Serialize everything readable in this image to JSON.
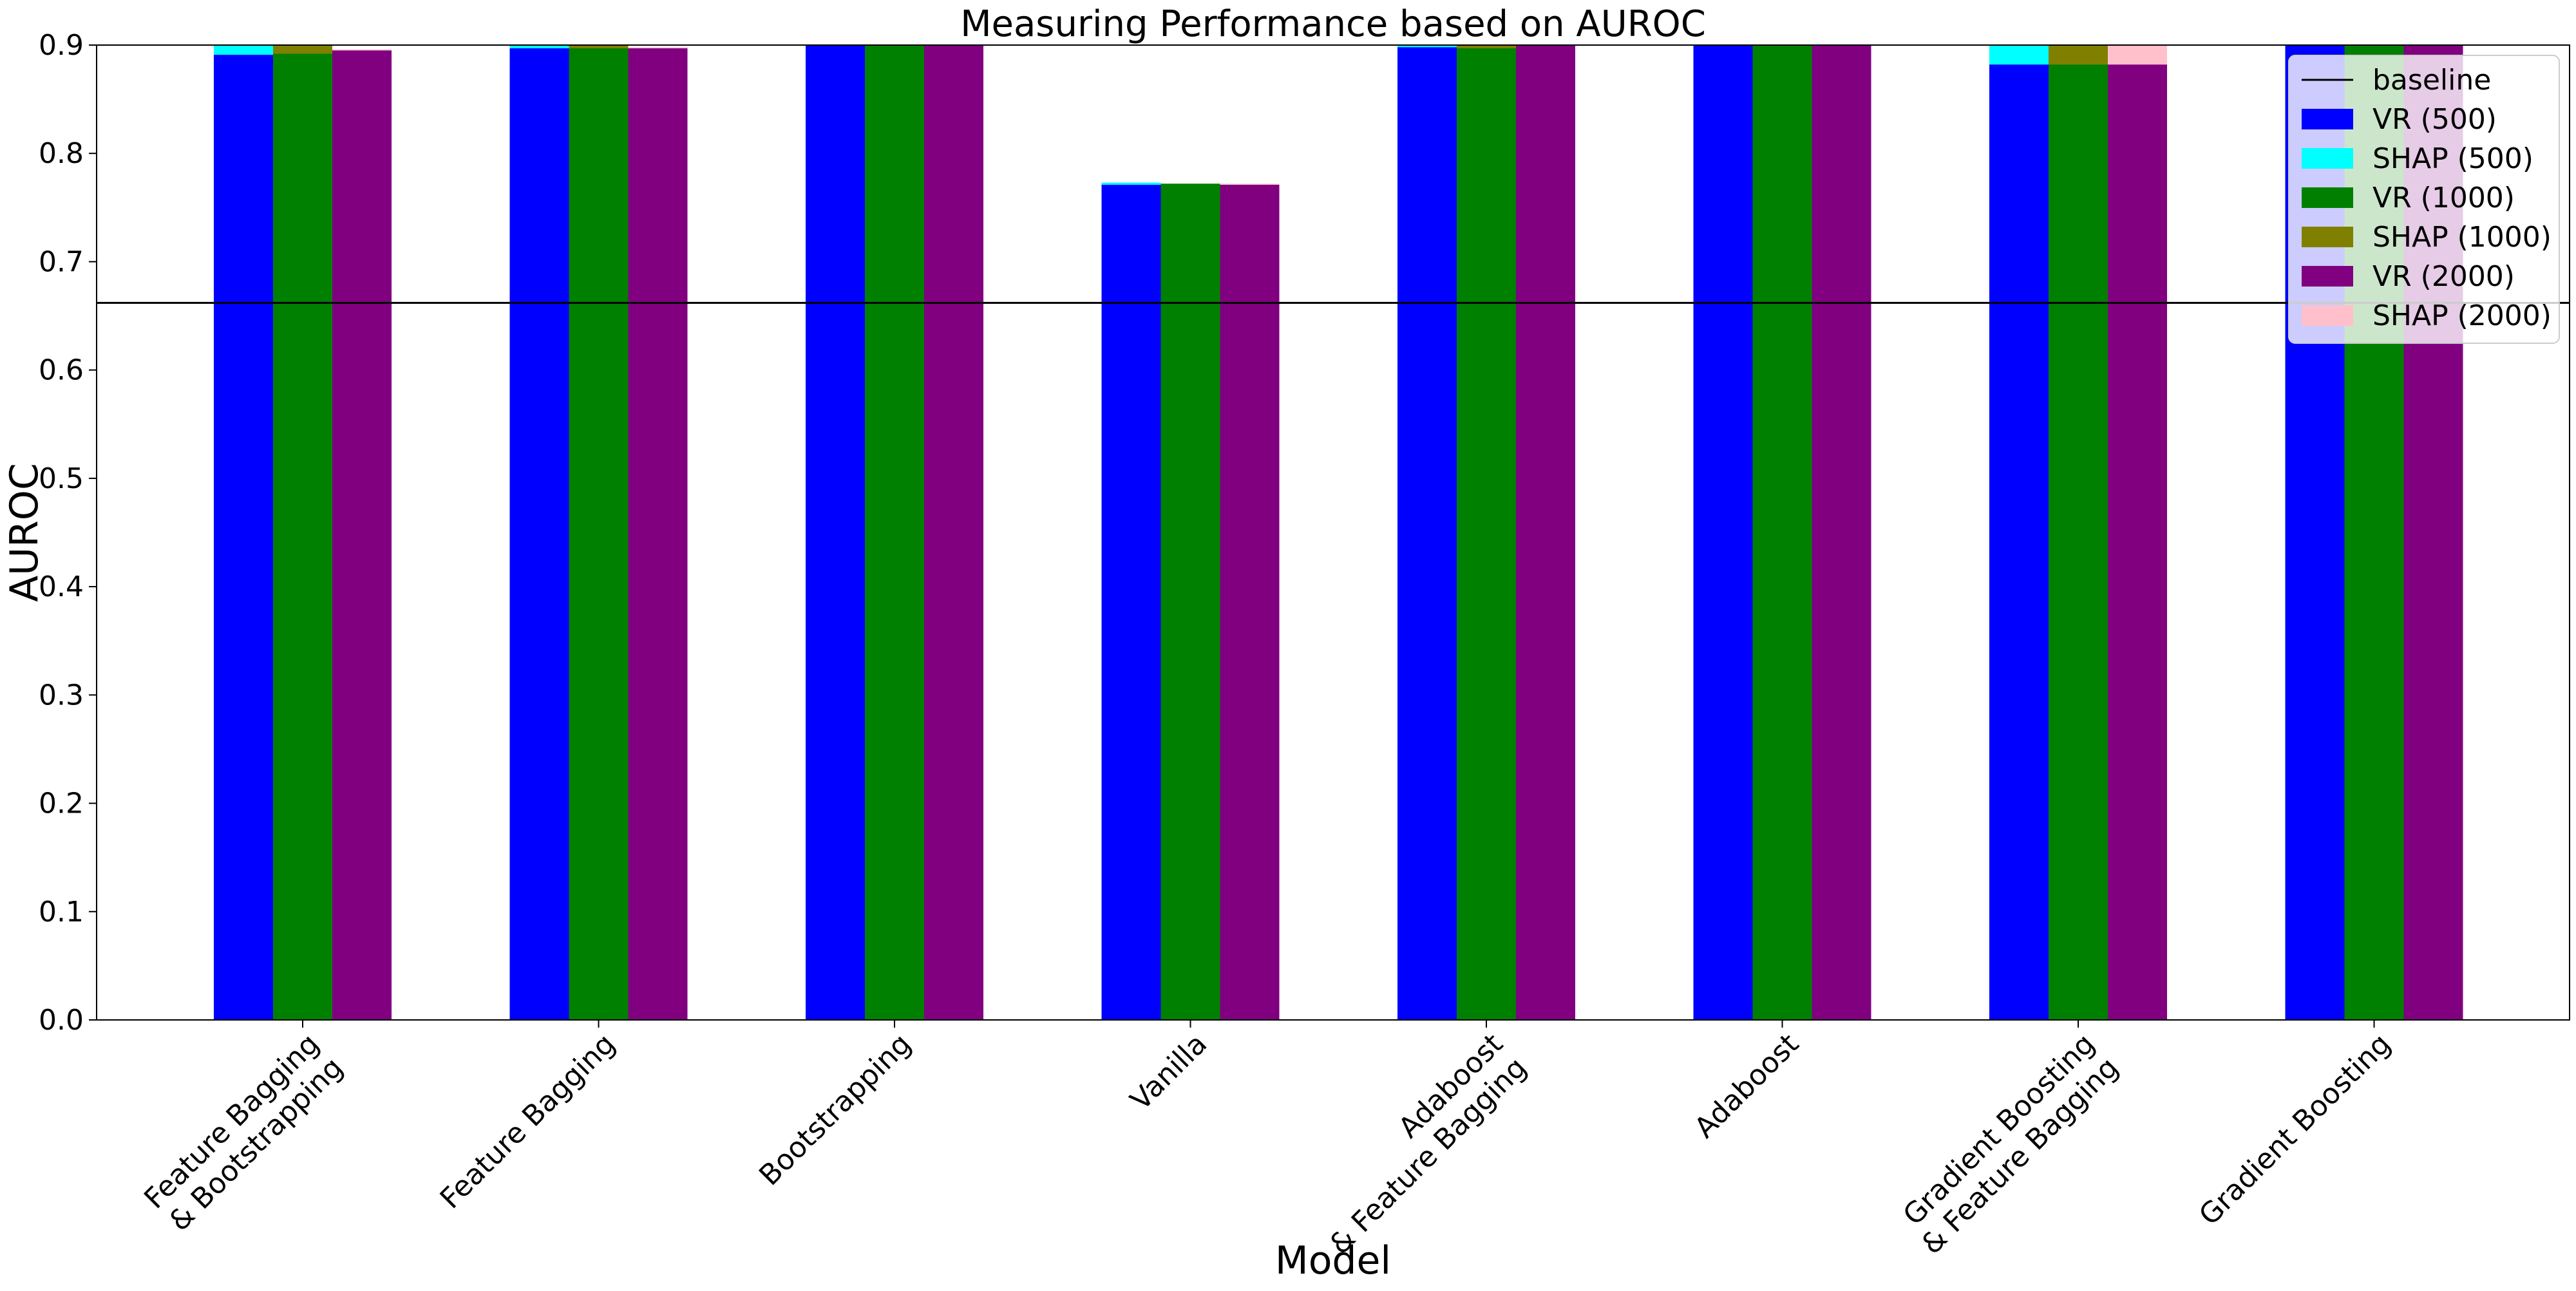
{
  "chart_data": {
    "type": "bar",
    "title": "Measuring Performance based on AUROC",
    "xlabel": "Model",
    "ylabel": "AUROC",
    "ylim": [
      0,
      0.9
    ],
    "yticks": [
      "0.0",
      "0.1",
      "0.2",
      "0.3",
      "0.4",
      "0.5",
      "0.6",
      "0.7",
      "0.8",
      "0.9"
    ],
    "grid": false,
    "legend_position": "top-right",
    "categories": [
      [
        "Feature Bagging",
        "& Bootstrapping"
      ],
      [
        "Feature Bagging"
      ],
      [
        "Bootstrapping"
      ],
      [
        "Vanilla"
      ],
      [
        "Adaboost",
        "& Feature Bagging"
      ],
      [
        "Adaboost"
      ],
      [
        "Gradient Boosting",
        "& Feature Bagging"
      ],
      [
        "Gradient Boosting"
      ]
    ],
    "baseline": {
      "name": "baseline",
      "value": 0.662,
      "color": "#000000"
    },
    "groups": [
      {
        "vr_name": "VR (500)",
        "vr_color": "#0000ff",
        "shap_name": "SHAP (500)",
        "shap_color": "#00ffff",
        "vr_values": [
          0.891,
          0.897,
          0.9,
          0.771,
          0.898,
          0.9,
          0.882,
          0.9
        ],
        "shap_values": [
          0.9,
          0.9,
          0.9,
          0.773,
          0.9,
          0.9,
          0.9,
          0.9
        ]
      },
      {
        "vr_name": "VR (1000)",
        "vr_color": "#008000",
        "shap_name": "SHAP (1000)",
        "shap_color": "#808000",
        "vr_values": [
          0.892,
          0.897,
          0.9,
          0.772,
          0.897,
          0.9,
          0.882,
          0.9
        ],
        "shap_values": [
          0.9,
          0.9,
          0.9,
          0.772,
          0.9,
          0.9,
          0.9,
          0.9
        ]
      },
      {
        "vr_name": "VR (2000)",
        "vr_color": "#800080",
        "shap_name": "SHAP (2000)",
        "shap_color": "#ffc0cb",
        "vr_values": [
          0.895,
          0.897,
          0.9,
          0.771,
          0.9,
          0.9,
          0.882,
          0.9
        ],
        "shap_values": [
          0.896,
          0.898,
          0.9,
          0.772,
          0.9,
          0.9,
          0.9,
          0.9
        ]
      }
    ]
  }
}
